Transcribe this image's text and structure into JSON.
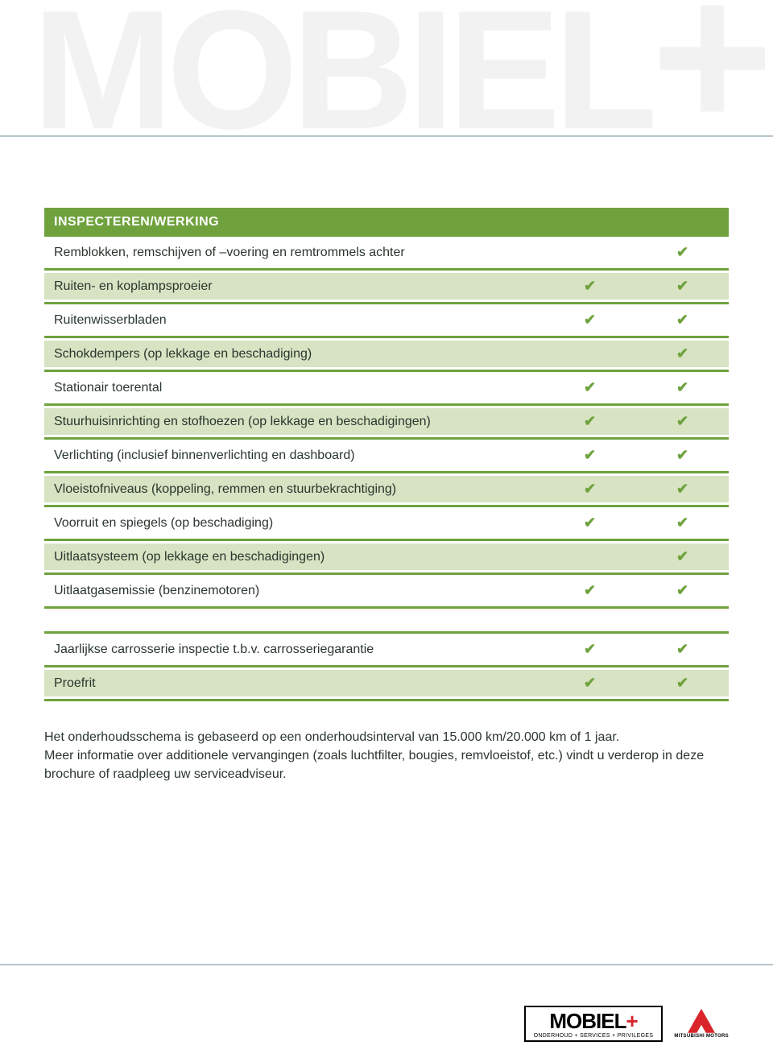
{
  "colors": {
    "header_bg": "#6fa23d",
    "header_text": "#ffffff",
    "tint_row": "#d7e3c2",
    "white_row": "#ffffff",
    "text": "#2a362e",
    "check": "#6fa23d",
    "rule": "#b8c5cc",
    "watermark": "#f2f2f2",
    "logo_accent": "#d9252a"
  },
  "watermark": {
    "main": "MOBIEL",
    "plus": "+"
  },
  "table1": {
    "header": "INSPECTEREN/WERKING",
    "rows": [
      {
        "label": "Remblokken, remschijven of –voering en remtrommels achter",
        "c1": false,
        "c2": true,
        "tint": false
      },
      {
        "label": "Ruiten- en koplampsproeier",
        "c1": true,
        "c2": true,
        "tint": true
      },
      {
        "label": "Ruitenwisserbladen",
        "c1": true,
        "c2": true,
        "tint": false
      },
      {
        "label": "Schokdempers (op lekkage en beschadiging)",
        "c1": false,
        "c2": true,
        "tint": true
      },
      {
        "label": "Stationair toerental",
        "c1": true,
        "c2": true,
        "tint": false
      },
      {
        "label": "Stuurhuisinrichting en stofhoezen (op lekkage en beschadigingen)",
        "c1": true,
        "c2": true,
        "tint": true
      },
      {
        "label": "Verlichting (inclusief binnenverlichting en dashboard)",
        "c1": true,
        "c2": true,
        "tint": false
      },
      {
        "label": "Vloeistofniveaus (koppeling, remmen en stuurbekrachtiging)",
        "c1": true,
        "c2": true,
        "tint": true
      },
      {
        "label": "Voorruit en spiegels (op beschadiging)",
        "c1": true,
        "c2": true,
        "tint": false
      },
      {
        "label": "Uitlaatsysteem (op lekkage en beschadigingen)",
        "c1": false,
        "c2": true,
        "tint": true
      },
      {
        "label": "Uitlaatgasemissie (benzinemotoren)",
        "c1": true,
        "c2": true,
        "tint": false
      }
    ]
  },
  "table2": {
    "rows": [
      {
        "label": "Jaarlijkse carrosserie inspectie t.b.v. carrosseriegarantie",
        "c1": true,
        "c2": true,
        "tint": false
      },
      {
        "label": "Proefrit",
        "c1": true,
        "c2": true,
        "tint": true
      }
    ]
  },
  "footnote": {
    "line1": "Het onderhoudsschema is gebaseerd op een onderhoudsinterval van 15.000 km/20.000 km of 1 jaar.",
    "line2": "Meer informatie over additionele vervangingen (zoals luchtfilter, bougies, remvloeistof, etc.) vindt u verderop in deze brochure of raadpleeg uw serviceadviseur."
  },
  "footer": {
    "logo_main": "MOBIEL",
    "logo_plus": "+",
    "logo_sub": "ONDERHOUD + SERVICES + PRIVILEGES",
    "brand": "MITSUBISHI MOTORS"
  }
}
